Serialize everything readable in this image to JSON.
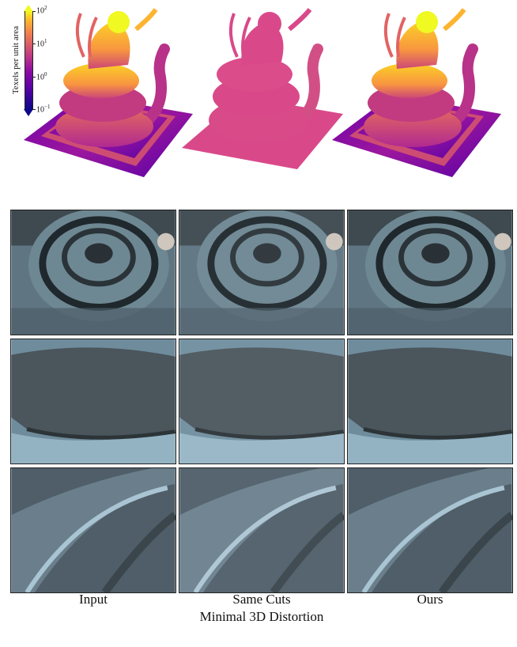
{
  "figure": {
    "colorbar": {
      "title": "Texels per unit area",
      "ticks": [
        {
          "base": "10",
          "exp": "2"
        },
        {
          "base": "10",
          "exp": "1"
        },
        {
          "base": "10",
          "exp": "0"
        },
        {
          "base": "10",
          "exp": "−1"
        }
      ],
      "colormap": "plasma",
      "scale": "log"
    },
    "renders": [
      {
        "name": "input-density-render",
        "color_scheme": "density"
      },
      {
        "name": "same-cuts-density-render",
        "color_scheme": "uniform",
        "uniform_color": "#d9498a"
      },
      {
        "name": "ours-density-render",
        "color_scheme": "density"
      }
    ],
    "columns": [
      {
        "label": "Input",
        "sub": ""
      },
      {
        "label": "Same Cuts",
        "sub": "Minimal 3D Distortion"
      },
      {
        "label": "Ours",
        "sub": ""
      }
    ],
    "rows": [
      {
        "name": "closeup-coil"
      },
      {
        "name": "closeup-base-wall"
      },
      {
        "name": "closeup-tail-ridge"
      }
    ]
  }
}
